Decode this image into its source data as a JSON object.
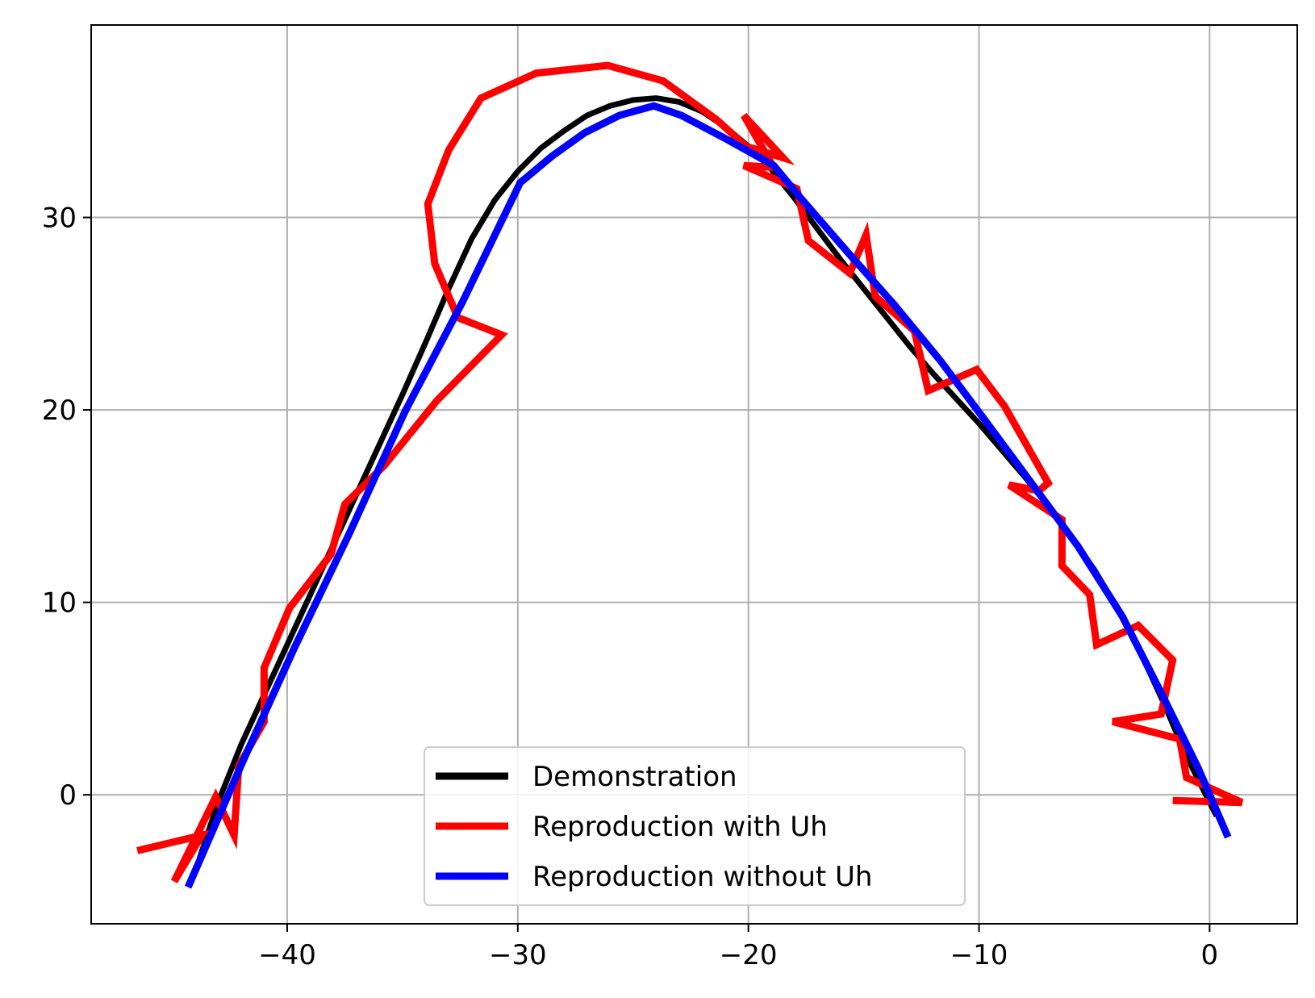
{
  "chart_data": {
    "type": "line",
    "title": "",
    "xlabel": "",
    "ylabel": "",
    "xlim": [
      -48.5,
      3.8
    ],
    "ylim": [
      -6.7,
      40.0
    ],
    "grid": true,
    "legend_position": "bottom-center",
    "x_ticks": [
      -40,
      -30,
      -20,
      -10,
      0
    ],
    "y_ticks": [
      0,
      10,
      20,
      30
    ],
    "x_tick_labels": [
      "−40",
      "−30",
      "−20",
      "−10",
      "0"
    ],
    "y_tick_labels": [
      "0",
      "10",
      "20",
      "30"
    ],
    "series": [
      {
        "name": "Demonstration",
        "color": "#000000",
        "width": 7,
        "points": [
          [
            -43.8,
            -3.3
          ],
          [
            -43.0,
            -0.4
          ],
          [
            -42.0,
            2.6
          ],
          [
            -41.0,
            5.2
          ],
          [
            -40.0,
            7.8
          ],
          [
            -39.0,
            10.4
          ],
          [
            -38.0,
            13.0
          ],
          [
            -37.0,
            15.6
          ],
          [
            -36.0,
            18.2
          ],
          [
            -35.0,
            20.8
          ],
          [
            -34.0,
            23.5
          ],
          [
            -33.0,
            26.3
          ],
          [
            -32.0,
            28.9
          ],
          [
            -31.0,
            30.9
          ],
          [
            -30.0,
            32.4
          ],
          [
            -29.0,
            33.6
          ],
          [
            -28.0,
            34.5
          ],
          [
            -27.0,
            35.3
          ],
          [
            -26.0,
            35.8
          ],
          [
            -25.0,
            36.1
          ],
          [
            -24.0,
            36.2
          ],
          [
            -23.0,
            36.0
          ],
          [
            -22.0,
            35.5
          ],
          [
            -21.0,
            34.7
          ],
          [
            -20.0,
            33.7
          ],
          [
            -19.0,
            32.5
          ],
          [
            -18.0,
            31.0
          ],
          [
            -17.0,
            29.4
          ],
          [
            -16.0,
            27.8
          ],
          [
            -15.0,
            26.3
          ],
          [
            -14.0,
            24.8
          ],
          [
            -13.0,
            23.3
          ],
          [
            -12.0,
            21.9
          ],
          [
            -11.0,
            20.6
          ],
          [
            -10.0,
            19.3
          ],
          [
            -9.0,
            17.9
          ],
          [
            -8.0,
            16.5
          ],
          [
            -7.0,
            15.0
          ],
          [
            -6.0,
            13.4
          ],
          [
            -5.0,
            11.7
          ],
          [
            -4.0,
            9.7
          ],
          [
            -3.0,
            7.4
          ],
          [
            -2.0,
            4.8
          ],
          [
            -1.0,
            2.0
          ],
          [
            0.0,
            -0.4
          ],
          [
            0.3,
            -1.1
          ]
        ]
      },
      {
        "name": "Reproduction with Uh",
        "color": "#ff0000",
        "width": 9,
        "points": [
          [
            -46.5,
            -2.9
          ],
          [
            -43.7,
            -2.1
          ],
          [
            -44.9,
            -4.5
          ],
          [
            -43.1,
            -0.1
          ],
          [
            -42.3,
            -2.1
          ],
          [
            -42.1,
            1.5
          ],
          [
            -41.0,
            3.8
          ],
          [
            -41.0,
            6.6
          ],
          [
            -39.9,
            9.7
          ],
          [
            -38.1,
            12.5
          ],
          [
            -37.5,
            15.1
          ],
          [
            -35.8,
            17.1
          ],
          [
            -33.5,
            20.5
          ],
          [
            -30.7,
            23.9
          ],
          [
            -32.6,
            24.8
          ],
          [
            -33.6,
            27.6
          ],
          [
            -33.9,
            30.7
          ],
          [
            -33.0,
            33.5
          ],
          [
            -31.6,
            36.2
          ],
          [
            -29.2,
            37.5
          ],
          [
            -26.1,
            37.9
          ],
          [
            -23.7,
            37.1
          ],
          [
            -21.4,
            35.1
          ],
          [
            -20.1,
            33.7
          ],
          [
            -18.5,
            33.1
          ],
          [
            -20.2,
            35.3
          ],
          [
            -18.9,
            32.6
          ],
          [
            -20.2,
            32.7
          ],
          [
            -17.9,
            31.5
          ],
          [
            -17.4,
            28.8
          ],
          [
            -15.6,
            27.1
          ],
          [
            -14.9,
            29.1
          ],
          [
            -14.5,
            25.9
          ],
          [
            -12.8,
            24.1
          ],
          [
            -12.2,
            21.0
          ],
          [
            -10.1,
            22.1
          ],
          [
            -8.9,
            20.2
          ],
          [
            -7.0,
            16.2
          ],
          [
            -7.4,
            15.8
          ],
          [
            -8.7,
            16.1
          ],
          [
            -6.4,
            14.3
          ],
          [
            -6.4,
            11.9
          ],
          [
            -5.2,
            10.4
          ],
          [
            -4.9,
            7.8
          ],
          [
            -3.1,
            8.8
          ],
          [
            -1.6,
            7.0
          ],
          [
            -2.1,
            4.2
          ],
          [
            -4.2,
            3.8
          ],
          [
            -1.3,
            2.9
          ],
          [
            -1.0,
            0.9
          ],
          [
            1.4,
            -0.4
          ],
          [
            -1.6,
            -0.3
          ]
        ]
      },
      {
        "name": "Reproduction without Uh",
        "color": "#0000ff",
        "width": 9,
        "points": [
          [
            -44.3,
            -4.8
          ],
          [
            -41.9,
            1.8
          ],
          [
            -39.7,
            7.6
          ],
          [
            -37.3,
            13.6
          ],
          [
            -34.9,
            19.9
          ],
          [
            -32.4,
            25.6
          ],
          [
            -29.9,
            31.8
          ],
          [
            -28.5,
            33.2
          ],
          [
            -27.1,
            34.4
          ],
          [
            -25.6,
            35.3
          ],
          [
            -24.1,
            35.8
          ],
          [
            -22.9,
            35.3
          ],
          [
            -21.0,
            34.1
          ],
          [
            -18.9,
            32.7
          ],
          [
            -17.8,
            31.1
          ],
          [
            -15.7,
            28.2
          ],
          [
            -13.7,
            25.5
          ],
          [
            -11.7,
            22.6
          ],
          [
            -9.7,
            19.4
          ],
          [
            -7.6,
            16.0
          ],
          [
            -5.7,
            12.9
          ],
          [
            -3.8,
            9.3
          ],
          [
            -2.1,
            5.3
          ],
          [
            -0.5,
            1.4
          ],
          [
            0.8,
            -2.2
          ]
        ]
      }
    ]
  }
}
